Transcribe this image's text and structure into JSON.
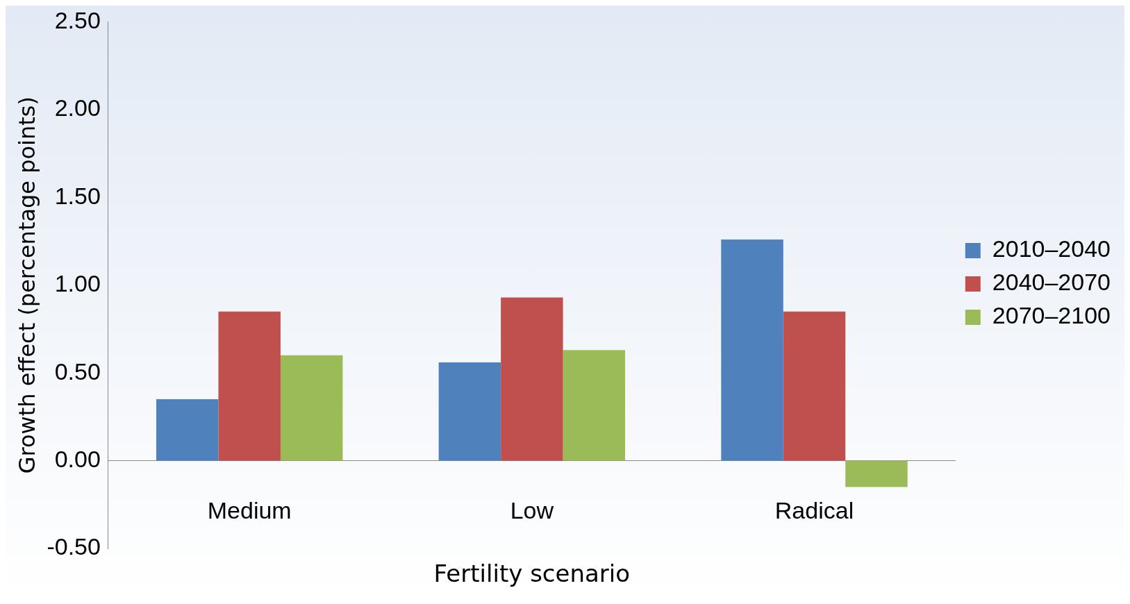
{
  "chart_data": {
    "type": "bar",
    "xlabel": "Fertility scenario",
    "ylabel": "Growth effect (percentage points)",
    "categories": [
      "Medium",
      "Low",
      "Radical"
    ],
    "series": [
      {
        "name": "2010–2040",
        "color": "#4f81bd",
        "values": [
          0.35,
          0.56,
          1.26
        ]
      },
      {
        "name": "2040–2070",
        "color": "#c0504d",
        "values": [
          0.85,
          0.93,
          0.85
        ]
      },
      {
        "name": "2070–2100",
        "color": "#9bbb59",
        "values": [
          0.6,
          0.63,
          -0.15
        ]
      }
    ],
    "ylim": [
      -0.5,
      2.5
    ],
    "yticks": [
      {
        "value": -0.5,
        "label": "-0.50"
      },
      {
        "value": 0,
        "label": "0.00"
      },
      {
        "value": 0.5,
        "label": "0.50"
      },
      {
        "value": 1,
        "label": "1.00"
      },
      {
        "value": 1.5,
        "label": "1.50"
      },
      {
        "value": 2,
        "label": "2.00"
      },
      {
        "value": 2.5,
        "label": "2.50"
      }
    ],
    "grid": false,
    "legend": "right"
  }
}
